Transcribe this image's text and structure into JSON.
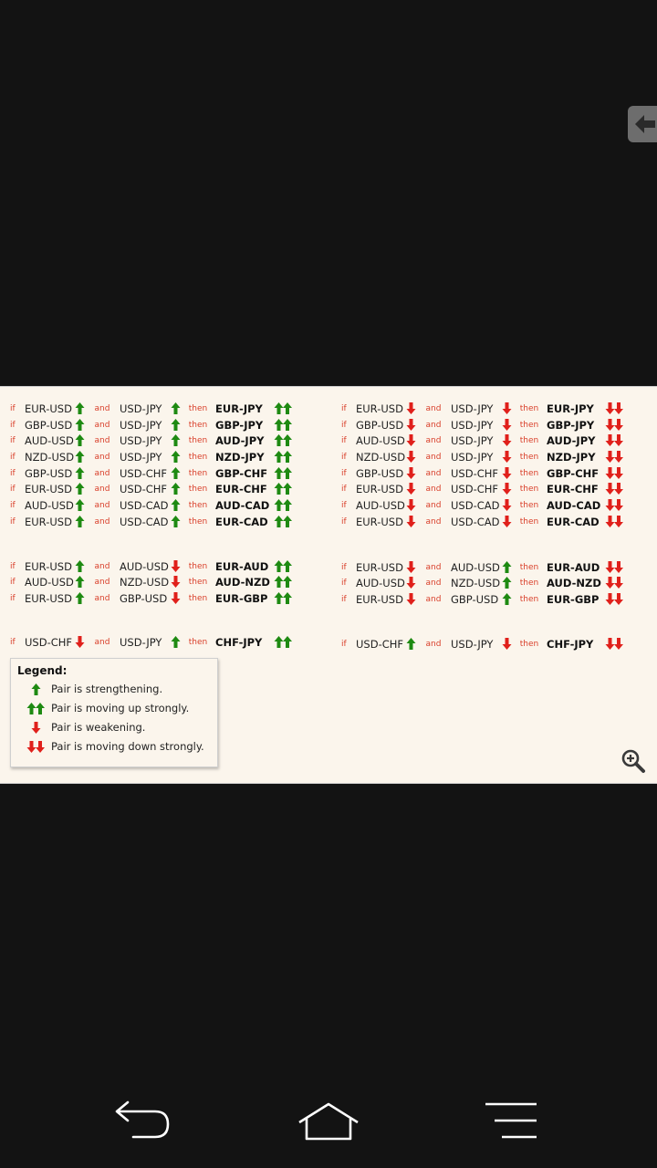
{
  "words": {
    "if": "if",
    "and": "and",
    "then": "then"
  },
  "rules_left": [
    {
      "a": "EUR-USD",
      "b": "USD-JPY",
      "r": "EUR-JPY"
    },
    {
      "a": "GBP-USD",
      "b": "USD-JPY",
      "r": "GBP-JPY"
    },
    {
      "a": "AUD-USD",
      "b": "USD-JPY",
      "r": "AUD-JPY"
    },
    {
      "a": "NZD-USD",
      "b": "USD-JPY",
      "r": "NZD-JPY"
    },
    {
      "a": "GBP-USD",
      "b": "USD-CHF",
      "r": "GBP-CHF"
    },
    {
      "a": "EUR-USD",
      "b": "USD-CHF",
      "r": "EUR-CHF"
    },
    {
      "a": "AUD-USD",
      "b": "USD-CAD",
      "r": "AUD-CAD"
    },
    {
      "a": "EUR-USD",
      "b": "USD-CAD",
      "r": "EUR-CAD"
    },
    {
      "a": "EUR-USD",
      "b": "AUD-USD",
      "r": "EUR-AUD"
    },
    {
      "a": "AUD-USD",
      "b": "NZD-USD",
      "r": "AUD-NZD"
    },
    {
      "a": "EUR-USD",
      "b": "GBP-USD",
      "r": "EUR-GBP"
    },
    {
      "a": "USD-CHF",
      "b": "USD-JPY",
      "r": "CHF-JPY"
    }
  ],
  "rules_right": [
    {
      "a": "EUR-USD",
      "b": "USD-JPY",
      "r": "EUR-JPY"
    },
    {
      "a": "GBP-USD",
      "b": "USD-JPY",
      "r": "GBP-JPY"
    },
    {
      "a": "AUD-USD",
      "b": "USD-JPY",
      "r": "AUD-JPY"
    },
    {
      "a": "NZD-USD",
      "b": "USD-JPY",
      "r": "NZD-JPY"
    },
    {
      "a": "GBP-USD",
      "b": "USD-CHF",
      "r": "GBP-CHF"
    },
    {
      "a": "EUR-USD",
      "b": "USD-CHF",
      "r": "EUR-CHF"
    },
    {
      "a": "AUD-USD",
      "b": "USD-CAD",
      "r": "AUD-CAD"
    },
    {
      "a": "EUR-USD",
      "b": "USD-CAD",
      "r": "EUR-CAD"
    },
    {
      "a": "EUR-USD",
      "b": "AUD-USD",
      "r": "EUR-AUD"
    },
    {
      "a": "AUD-USD",
      "b": "NZD-USD",
      "r": "AUD-NZD"
    },
    {
      "a": "EUR-USD",
      "b": "GBP-USD",
      "r": "EUR-GBP"
    },
    {
      "a": "USD-CHF",
      "b": "USD-JPY",
      "r": "CHF-JPY"
    }
  ],
  "legend": {
    "title": "Legend:",
    "items": [
      {
        "icon": "arrow-up-icon",
        "label": "Pair is strengthening."
      },
      {
        "icon": "double-arrow-up-icon",
        "label": "Pair is moving up strongly."
      },
      {
        "icon": "arrow-down-icon",
        "label": "Pair is weakening."
      },
      {
        "icon": "double-arrow-down-icon",
        "label": "Pair is moving down strongly."
      }
    ]
  },
  "colors": {
    "up": "#1e8a12",
    "down": "#e0201b",
    "keyword": "#d9402b",
    "background": "#fbf5ec"
  },
  "icons": {
    "side_tab": "back-arrow-icon",
    "zoom": "zoom-in-icon",
    "nav": [
      "back-nav-icon",
      "home-nav-icon",
      "menu-nav-icon"
    ]
  }
}
